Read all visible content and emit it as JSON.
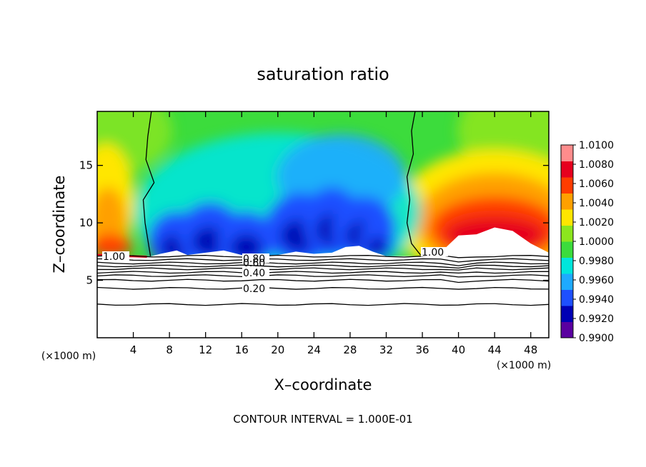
{
  "chart_data": {
    "type": "heatmap",
    "title": "saturation ratio",
    "xlabel": "X–coordinate",
    "ylabel": "Z–coordinate",
    "x_multiplier": "(×1000 m)",
    "y_multiplier": "(×1000 m)",
    "xlim": [
      0,
      50
    ],
    "ylim": [
      0,
      19.7
    ],
    "x_ticks": [
      "4",
      "8",
      "12",
      "16",
      "20",
      "24",
      "28",
      "32",
      "36",
      "40",
      "44",
      "48"
    ],
    "y_ticks": [
      "5",
      "10",
      "15"
    ],
    "colorbar": {
      "labels": [
        "1.0100",
        "1.0080",
        "1.0060",
        "1.0040",
        "1.0020",
        "1.0000",
        "0.9980",
        "0.9960",
        "0.9940",
        "0.9920",
        "0.9900"
      ],
      "min": 0.99,
      "max": 1.01,
      "colors": [
        "#5a00a0",
        "#0000b4",
        "#1e50ff",
        "#1eaaff",
        "#00e6dc",
        "#3cdc3c",
        "#8ce61e",
        "#ffe600",
        "#ffa000",
        "#ff3c00",
        "#e6001e",
        "#ff8c8c"
      ]
    },
    "contour_labels": [
      "1.00",
      "0.80",
      "0.60",
      "0.40",
      "0.20",
      "1.00"
    ],
    "contour_interval_note": "CONTOUR INTERVAL = 1.000E-01",
    "field_description_keys": {
      "lower_region": "saturation ratio < 0.99 shown white below ~7 km",
      "plume_centers_km": [
        8.5,
        12,
        16.5,
        19,
        24,
        27,
        30
      ]
    }
  }
}
